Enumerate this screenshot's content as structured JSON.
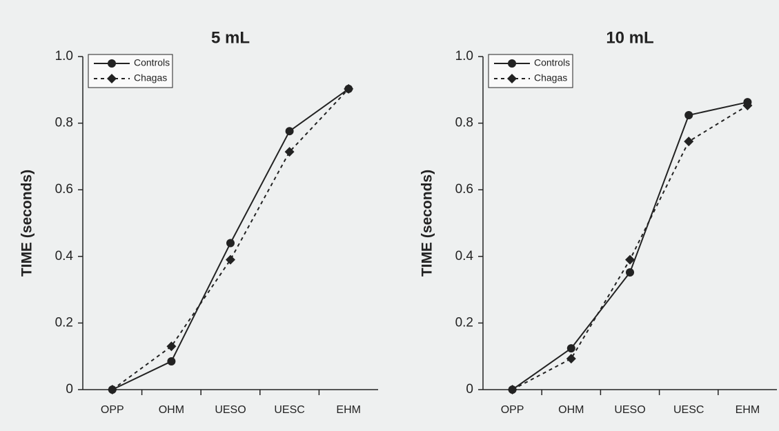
{
  "chart_data": [
    {
      "type": "line",
      "title": "5 mL",
      "y_label": "TIME (seconds)",
      "categories": [
        "OPP",
        "OHM",
        "UESO",
        "UESC",
        "EHM"
      ],
      "series": [
        {
          "name": "Controls",
          "color": "#222222",
          "line_style": "solid",
          "marker": "circle",
          "values": [
            0,
            0.085,
            0.44,
            0.776,
            0.903
          ]
        },
        {
          "name": "Chagas",
          "color": "#222222",
          "line_style": "dashed",
          "marker": "diamond",
          "values": [
            0,
            0.13,
            0.39,
            0.714,
            0.903
          ]
        }
      ],
      "ylim": [
        0,
        1
      ],
      "yticks": [
        0,
        0.2,
        0.4,
        0.6,
        0.8,
        {
          "value": 1,
          "label": "1.0"
        }
      ],
      "legend": "upper left"
    },
    {
      "type": "line",
      "title": "10 mL",
      "y_label": "TIME (seconds)",
      "categories": [
        "OPP",
        "OHM",
        "UESO",
        "UESC",
        "EHM"
      ],
      "series": [
        {
          "name": "Controls",
          "color": "#222222",
          "line_style": "solid",
          "marker": "circle",
          "values": [
            0,
            0.124,
            0.352,
            0.824,
            0.863
          ]
        },
        {
          "name": "Chagas",
          "color": "#222222",
          "line_style": "dashed",
          "marker": "diamond",
          "values": [
            0,
            0.093,
            0.39,
            0.745,
            0.853
          ]
        }
      ],
      "ylim": [
        0,
        1
      ],
      "yticks": [
        0,
        0.2,
        0.4,
        0.6,
        0.8,
        {
          "value": 1,
          "label": "1.0"
        }
      ],
      "legend": "upper left"
    }
  ]
}
